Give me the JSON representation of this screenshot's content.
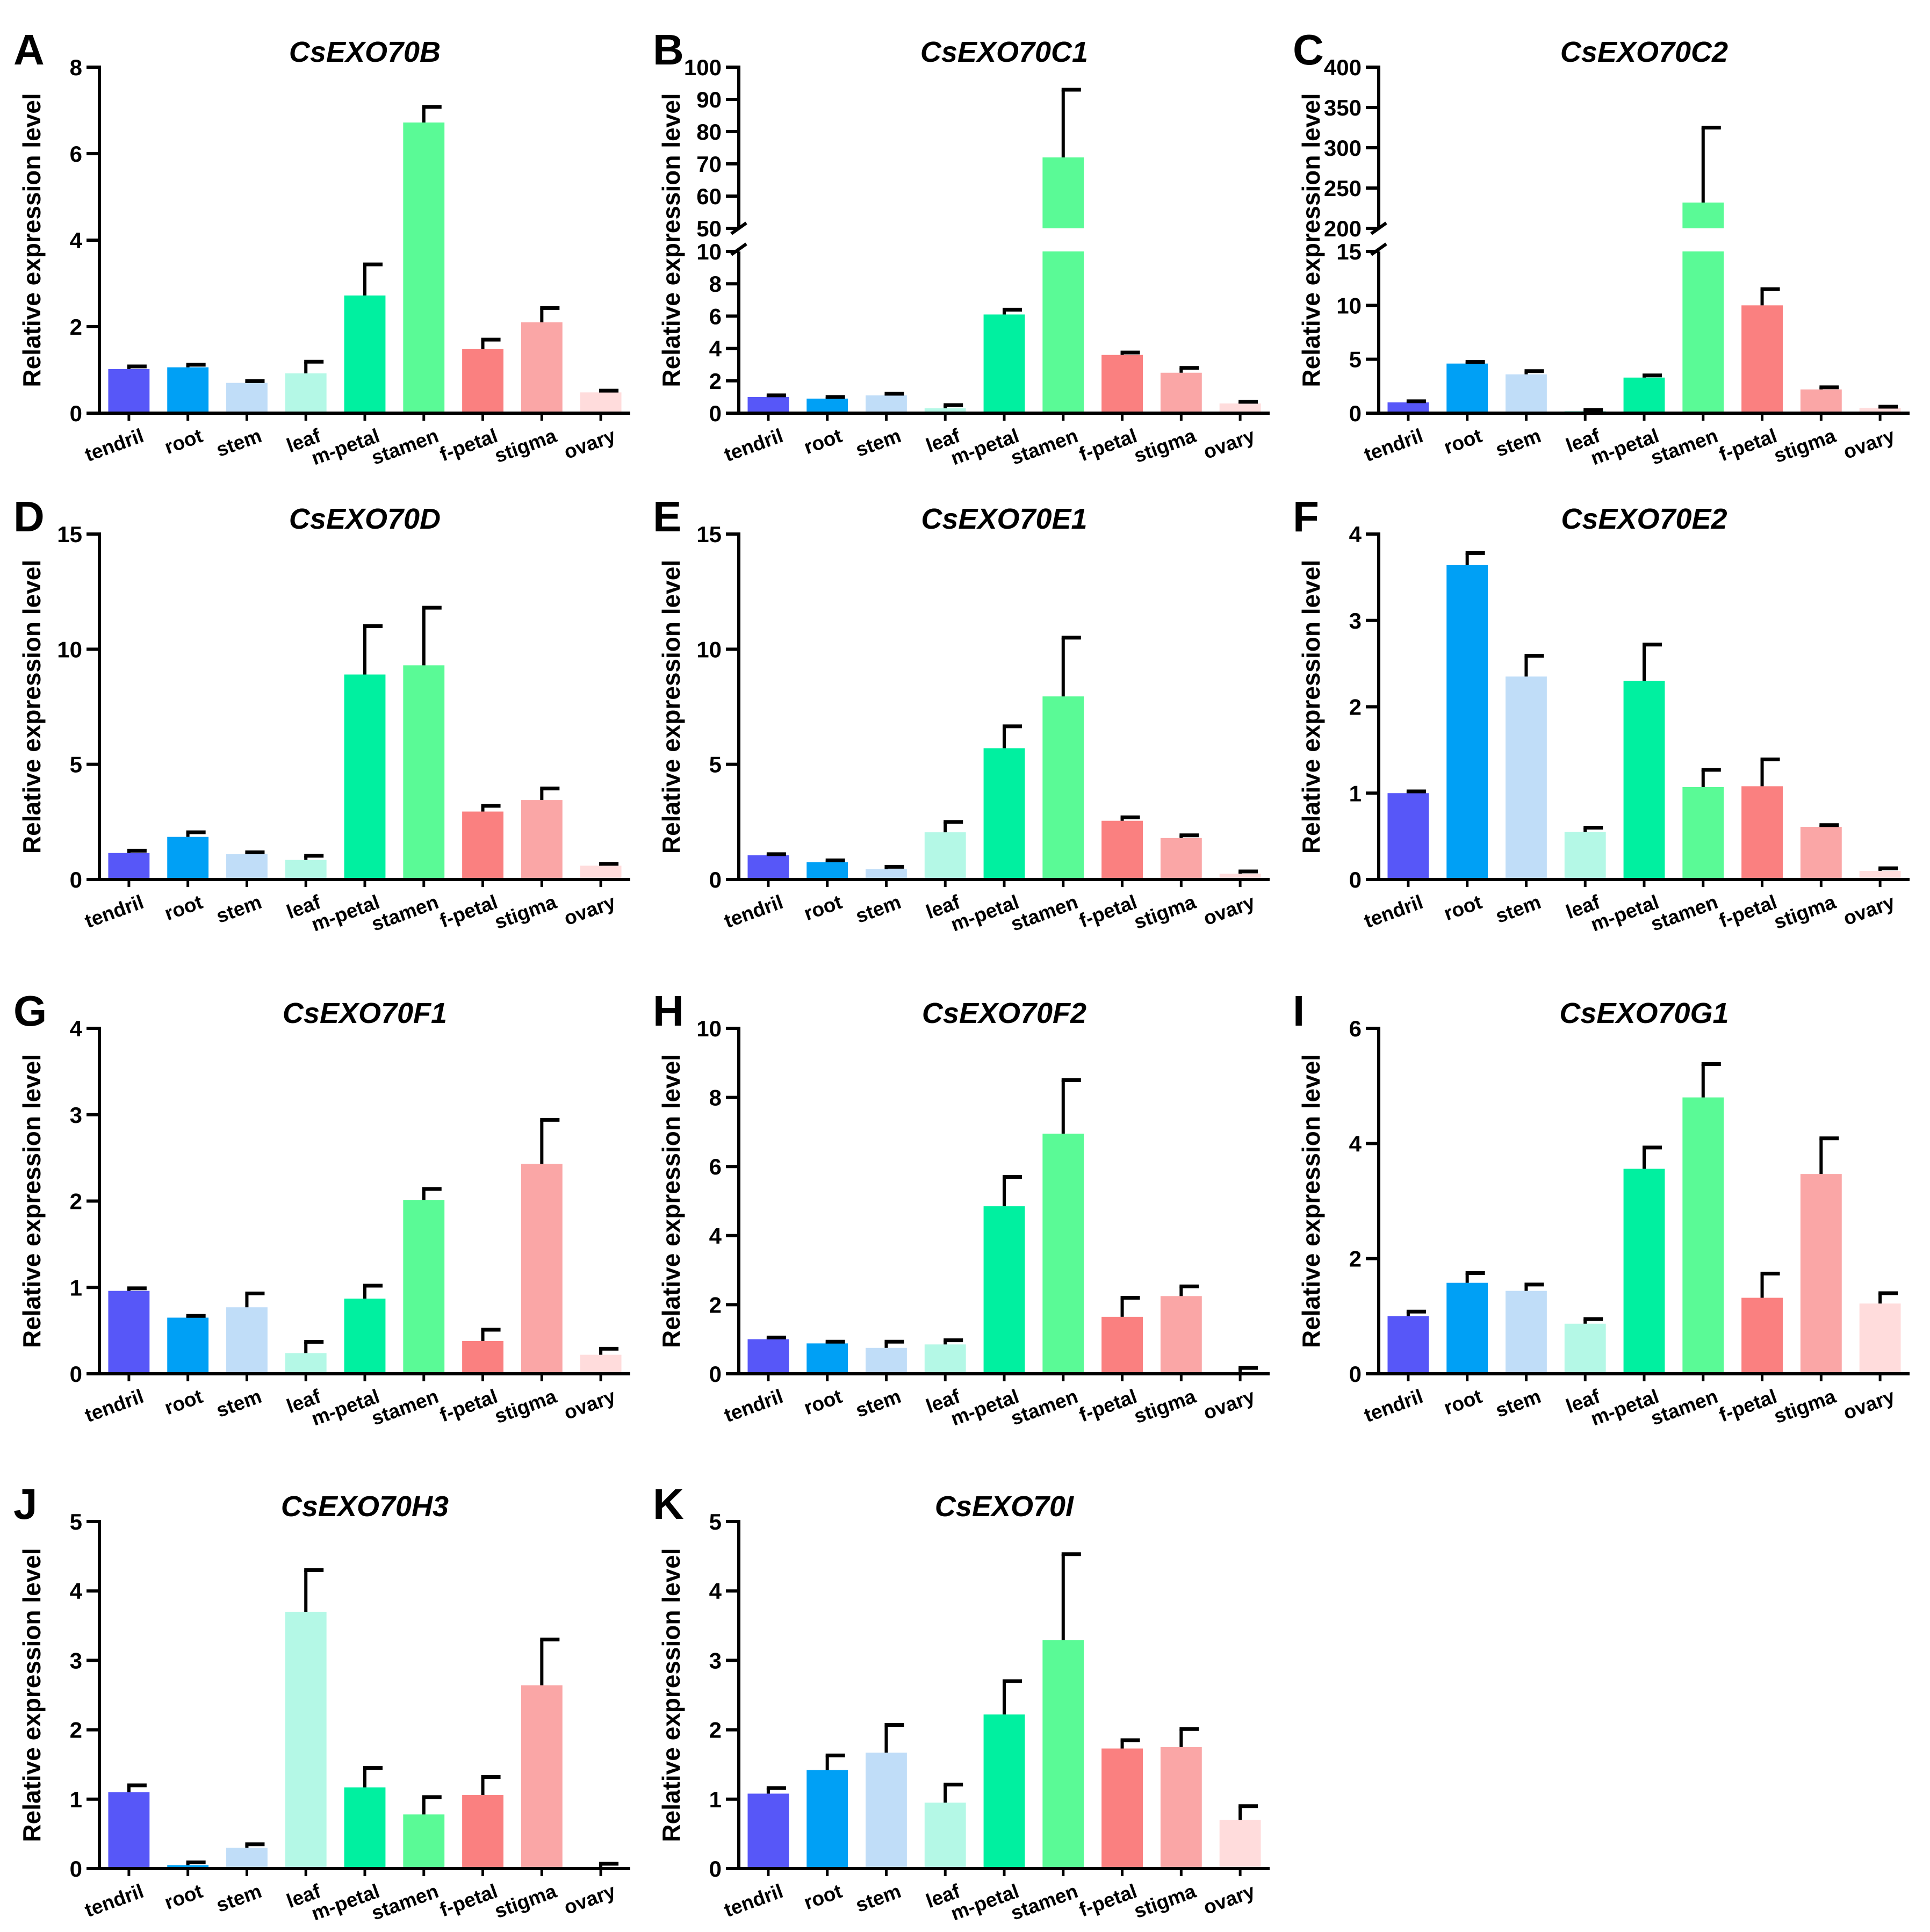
{
  "colors": {
    "tendril": "#5757F8",
    "root": "#00A0F5",
    "stem": "#C0DDF8",
    "leaf": "#B4F8E6",
    "m-petal": "#00F0A0",
    "stamen": "#5AFA96",
    "f-petal": "#FA8080",
    "stigma": "#FAA6A6",
    "ovary": "#FFDCDC",
    "axis": "#000000"
  },
  "chart_data": [
    {
      "panel": "A",
      "title": "CsEXO70B",
      "type": "bar",
      "ylabel": "Relative expression level",
      "categories": [
        "tendril",
        "root",
        "stem",
        "leaf",
        "m-petal",
        "stamen",
        "f-petal",
        "stigma",
        "ovary"
      ],
      "values": [
        1.02,
        1.06,
        0.7,
        0.92,
        2.72,
        6.72,
        1.48,
        2.1,
        0.48
      ],
      "errors": [
        0.06,
        0.06,
        0.04,
        0.27,
        0.72,
        0.36,
        0.22,
        0.33,
        0.04
      ],
      "ylim": [
        0,
        8
      ],
      "yticks": [
        0,
        2,
        4,
        6,
        8
      ]
    },
    {
      "panel": "B",
      "title": "CsEXO70C1",
      "type": "bar",
      "ylabel": "Relative expression level",
      "categories": [
        "tendril",
        "root",
        "stem",
        "leaf",
        "m-petal",
        "stamen",
        "f-petal",
        "stigma",
        "ovary"
      ],
      "values": [
        1.0,
        0.9,
        1.1,
        0.3,
        6.1,
        72.0,
        3.6,
        2.5,
        0.6
      ],
      "errors": [
        0.1,
        0.1,
        0.1,
        0.2,
        0.3,
        21.0,
        0.15,
        0.3,
        0.1
      ],
      "axis_break": {
        "lower": [
          0,
          10
        ],
        "upper": [
          50,
          100
        ]
      },
      "yticks_lower": [
        0,
        2,
        4,
        6,
        8,
        10
      ],
      "yticks_upper": [
        50,
        60,
        70,
        80,
        90,
        100
      ]
    },
    {
      "panel": "C",
      "title": "CsEXO70C2",
      "type": "bar",
      "ylabel": "Relative expression level",
      "categories": [
        "tendril",
        "root",
        "stem",
        "leaf",
        "m-petal",
        "stamen",
        "f-petal",
        "stigma",
        "ovary"
      ],
      "values": [
        1.0,
        4.6,
        3.6,
        0.2,
        3.3,
        232.0,
        10.0,
        2.2,
        0.5
      ],
      "errors": [
        0.1,
        0.15,
        0.3,
        0.1,
        0.2,
        93.0,
        1.5,
        0.2,
        0.1
      ],
      "axis_break": {
        "lower": [
          0,
          15
        ],
        "upper": [
          200,
          400
        ]
      },
      "yticks_lower": [
        0,
        5,
        10,
        15
      ],
      "yticks_upper": [
        200,
        250,
        300,
        350,
        400
      ]
    },
    {
      "panel": "D",
      "title": "CsEXO70D",
      "type": "bar",
      "ylabel": "Relative expression level",
      "categories": [
        "tendril",
        "root",
        "stem",
        "leaf",
        "m-petal",
        "stamen",
        "f-petal",
        "stigma",
        "ovary"
      ],
      "values": [
        1.15,
        1.85,
        1.1,
        0.85,
        8.9,
        9.3,
        2.95,
        3.45,
        0.6
      ],
      "errors": [
        0.1,
        0.2,
        0.08,
        0.18,
        2.1,
        2.5,
        0.25,
        0.5,
        0.08
      ],
      "ylim": [
        0,
        15
      ],
      "yticks": [
        0,
        5,
        10,
        15
      ]
    },
    {
      "panel": "E",
      "title": "CsEXO70E1",
      "type": "bar",
      "ylabel": "Relative expression level",
      "categories": [
        "tendril",
        "root",
        "stem",
        "leaf",
        "m-petal",
        "stamen",
        "f-petal",
        "stigma",
        "ovary"
      ],
      "values": [
        1.05,
        0.75,
        0.45,
        2.05,
        5.7,
        7.95,
        2.55,
        1.8,
        0.25
      ],
      "errors": [
        0.05,
        0.08,
        0.1,
        0.45,
        0.95,
        2.55,
        0.15,
        0.12,
        0.1
      ],
      "ylim": [
        0,
        15
      ],
      "yticks": [
        0,
        5,
        10,
        15
      ]
    },
    {
      "panel": "F",
      "title": "CsEXO70E2",
      "type": "bar",
      "ylabel": "Relative expression level",
      "categories": [
        "tendril",
        "root",
        "stem",
        "leaf",
        "m-petal",
        "stamen",
        "f-petal",
        "stigma",
        "ovary"
      ],
      "values": [
        1.0,
        3.64,
        2.35,
        0.55,
        2.3,
        1.07,
        1.08,
        0.61,
        0.1
      ],
      "errors": [
        0.02,
        0.14,
        0.24,
        0.05,
        0.42,
        0.2,
        0.31,
        0.02,
        0.03
      ],
      "ylim": [
        0,
        4
      ],
      "yticks": [
        0,
        1,
        2,
        3,
        4
      ]
    },
    {
      "panel": "G",
      "title": "CsEXO70F1",
      "type": "bar",
      "ylabel": "Relative expression level",
      "categories": [
        "tendril",
        "root",
        "stem",
        "leaf",
        "m-petal",
        "stamen",
        "f-petal",
        "stigma",
        "ovary"
      ],
      "values": [
        0.96,
        0.65,
        0.77,
        0.24,
        0.87,
        2.01,
        0.38,
        2.43,
        0.22
      ],
      "errors": [
        0.03,
        0.02,
        0.16,
        0.13,
        0.15,
        0.13,
        0.13,
        0.51,
        0.07
      ],
      "ylim": [
        0,
        4
      ],
      "yticks": [
        0,
        1,
        2,
        3,
        4
      ]
    },
    {
      "panel": "H",
      "title": "CsEXO70F2",
      "type": "bar",
      "ylabel": "Relative expression level",
      "categories": [
        "tendril",
        "root",
        "stem",
        "leaf",
        "m-petal",
        "stamen",
        "f-petal",
        "stigma",
        "ovary"
      ],
      "values": [
        1.0,
        0.88,
        0.75,
        0.85,
        4.85,
        6.95,
        1.65,
        2.25,
        0.05
      ],
      "errors": [
        0.05,
        0.05,
        0.18,
        0.12,
        0.85,
        1.55,
        0.55,
        0.28,
        0.12
      ],
      "ylim": [
        0,
        10
      ],
      "yticks": [
        0,
        2,
        4,
        6,
        8,
        10
      ]
    },
    {
      "panel": "I",
      "title": "CsEXO70G1",
      "type": "bar",
      "ylabel": "Relative expression level",
      "categories": [
        "tendril",
        "root",
        "stem",
        "leaf",
        "m-petal",
        "stamen",
        "f-petal",
        "stigma",
        "ovary"
      ],
      "values": [
        1.0,
        1.58,
        1.44,
        0.87,
        3.56,
        4.8,
        1.32,
        3.47,
        1.22
      ],
      "errors": [
        0.08,
        0.17,
        0.11,
        0.08,
        0.37,
        0.58,
        0.42,
        0.62,
        0.18
      ],
      "ylim": [
        0,
        6
      ],
      "yticks": [
        0,
        2,
        4,
        6
      ]
    },
    {
      "panel": "J",
      "title": "CsEXO70H3",
      "type": "bar",
      "ylabel": "Relative expression level",
      "categories": [
        "tendril",
        "root",
        "stem",
        "leaf",
        "m-petal",
        "stamen",
        "f-petal",
        "stigma",
        "ovary"
      ],
      "values": [
        1.1,
        0.05,
        0.3,
        3.7,
        1.17,
        0.78,
        1.06,
        2.64,
        0.02
      ],
      "errors": [
        0.1,
        0.04,
        0.05,
        0.6,
        0.28,
        0.25,
        0.26,
        0.66,
        0.05
      ],
      "ylim": [
        0,
        5
      ],
      "yticks": [
        0,
        1,
        2,
        3,
        4,
        5
      ]
    },
    {
      "panel": "K",
      "title": "CsEXO70I",
      "type": "bar",
      "ylabel": "Relative expression level",
      "categories": [
        "tendril",
        "root",
        "stem",
        "leaf",
        "m-petal",
        "stamen",
        "f-petal",
        "stigma",
        "ovary"
      ],
      "values": [
        1.08,
        1.42,
        1.67,
        0.95,
        2.22,
        3.29,
        1.73,
        1.75,
        0.7
      ],
      "errors": [
        0.08,
        0.21,
        0.4,
        0.26,
        0.48,
        1.24,
        0.12,
        0.26,
        0.2
      ],
      "ylim": [
        0,
        5
      ],
      "yticks": [
        0,
        1,
        2,
        3,
        4,
        5
      ]
    }
  ]
}
